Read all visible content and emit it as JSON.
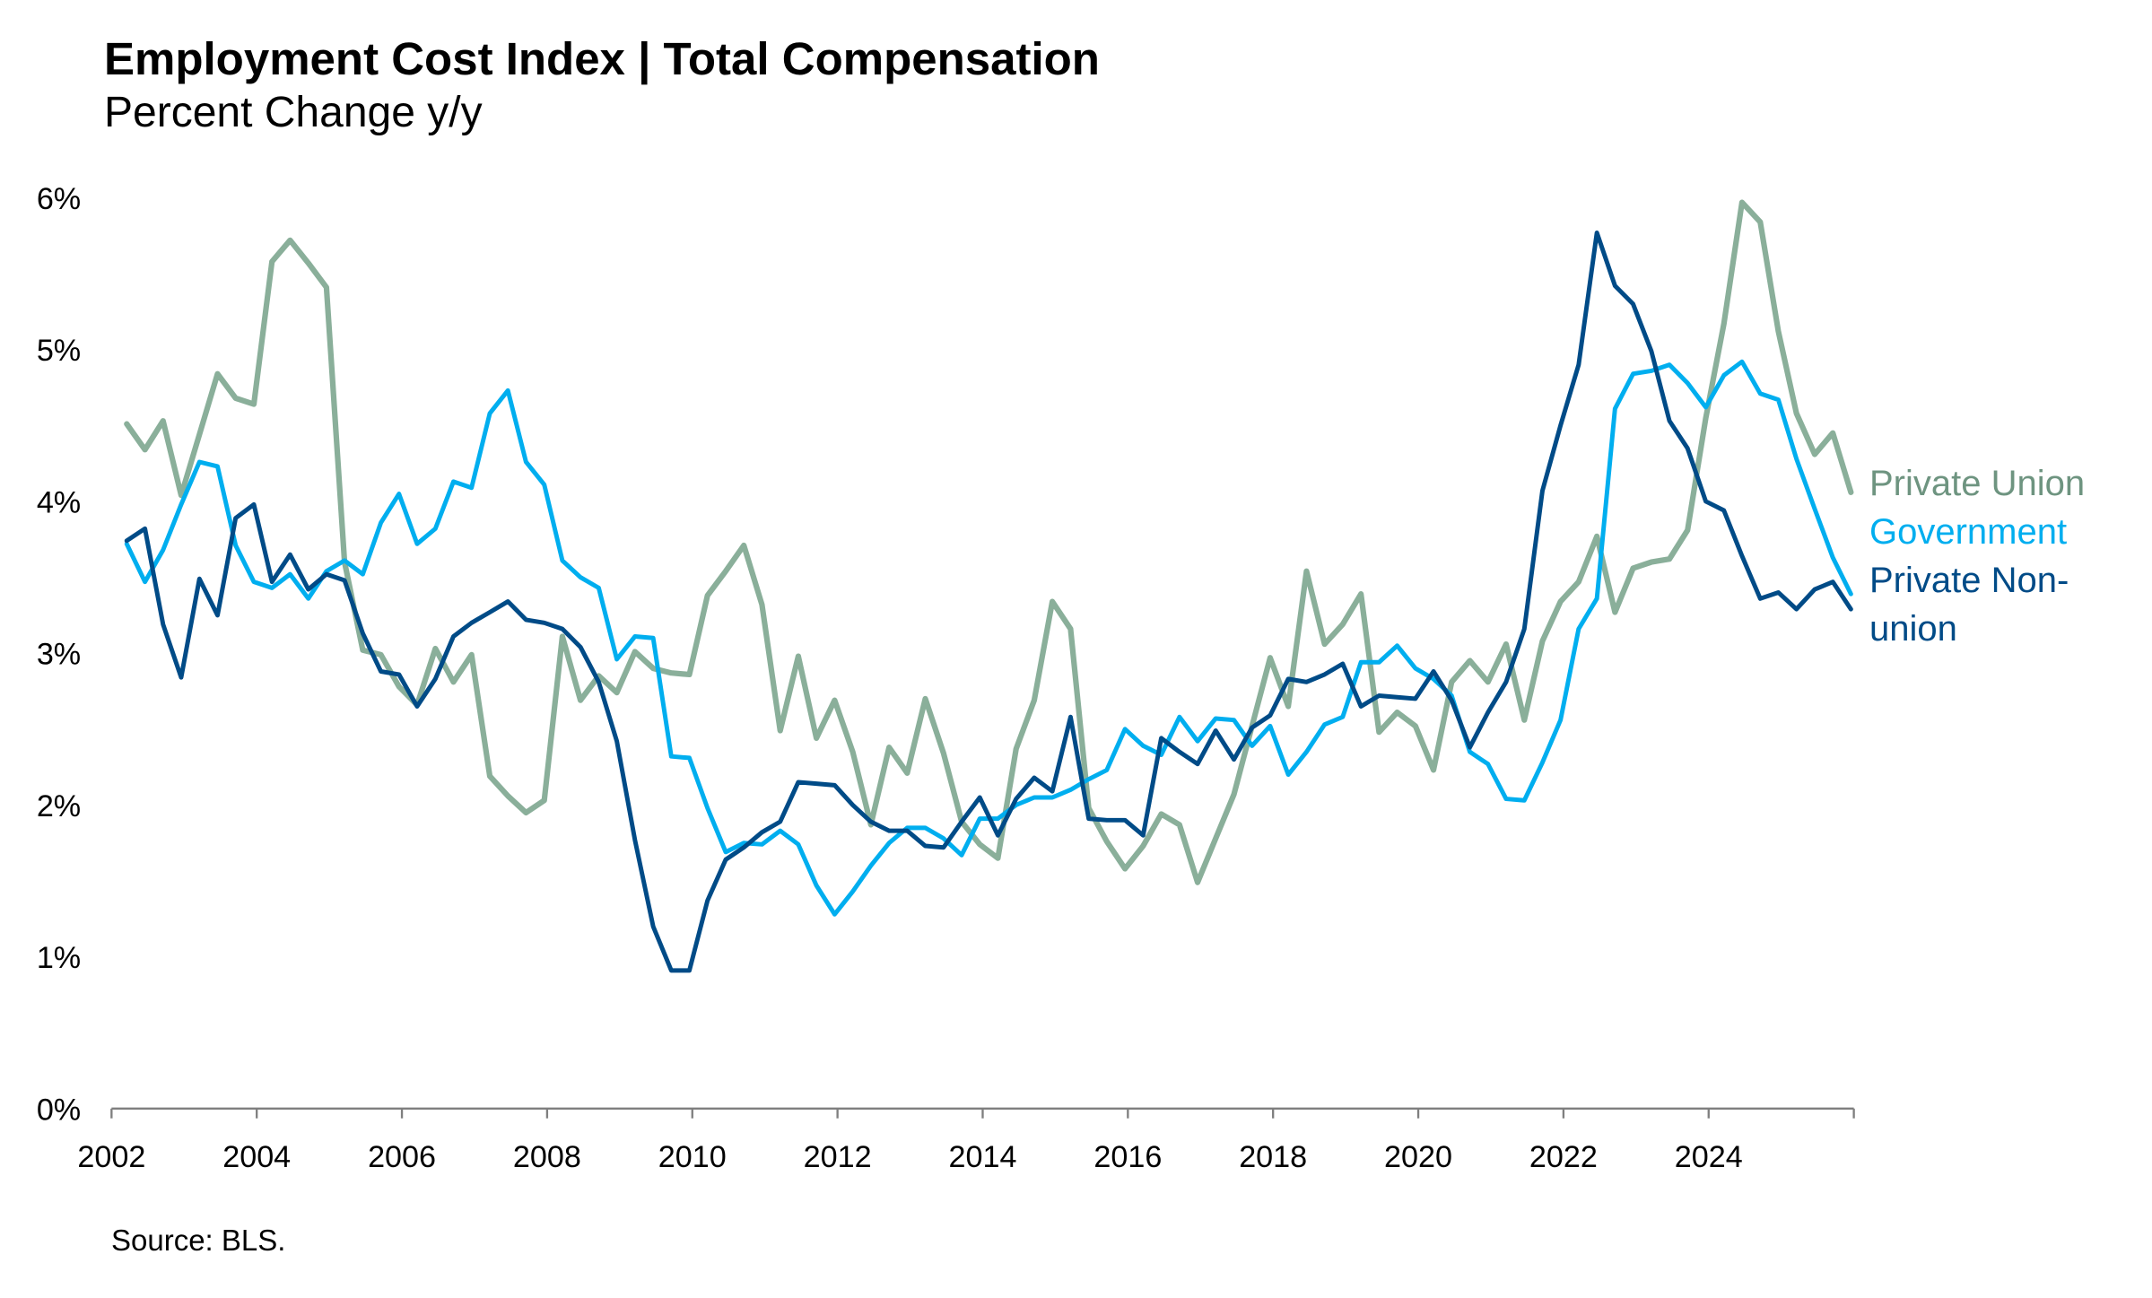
{
  "title": "Employment Cost Index | Total Compensation",
  "subtitle": "Percent Change y/y",
  "source": "Source: BLS.",
  "chart_data": {
    "type": "line",
    "title": "Employment Cost Index | Total Compensation",
    "subtitle": "Percent Change y/y",
    "xlabel": "",
    "ylabel": "",
    "x_start_quarter": "2002Q1",
    "x_frequency": "quarterly",
    "xlim": [
      2002,
      2026
    ],
    "ylim": [
      0,
      6
    ],
    "x_ticks": [
      "2002",
      "2004",
      "2006",
      "2008",
      "2010",
      "2012",
      "2014",
      "2016",
      "2018",
      "2020",
      "2022",
      "2024"
    ],
    "y_ticks": [
      "0%",
      "1%",
      "2%",
      "3%",
      "4%",
      "5%",
      "6%"
    ],
    "grid": false,
    "legend": "right",
    "series": [
      {
        "name": "Private Union",
        "color": "#8AAF9A",
        "label_color": "#6E9480",
        "values": [
          4.51,
          4.34,
          4.53,
          4.04,
          4.44,
          4.84,
          4.68,
          4.64,
          5.58,
          5.72,
          5.57,
          5.41,
          3.6,
          3.02,
          2.99,
          2.78,
          2.66,
          3.03,
          2.81,
          2.99,
          2.19,
          2.06,
          1.95,
          2.03,
          3.11,
          2.69,
          2.85,
          2.74,
          3.01,
          2.9,
          2.87,
          2.86,
          3.38,
          3.54,
          3.71,
          3.32,
          2.49,
          2.98,
          2.44,
          2.69,
          2.35,
          1.87,
          2.38,
          2.21,
          2.7,
          2.34,
          1.89,
          1.74,
          1.65,
          2.37,
          2.69,
          3.34,
          3.16,
          1.98,
          1.76,
          1.58,
          1.73,
          1.94,
          1.87,
          1.49,
          1.78,
          2.07,
          2.52,
          2.97,
          2.65,
          3.54,
          3.06,
          3.19,
          3.39,
          2.48,
          2.61,
          2.52,
          2.23,
          2.81,
          2.95,
          2.81,
          3.06,
          2.56,
          3.08,
          3.34,
          3.47,
          3.77,
          3.27,
          3.56,
          3.6,
          3.62,
          3.81,
          4.55,
          5.17,
          5.97,
          5.84,
          5.12,
          4.58,
          4.31,
          4.45,
          4.06
        ]
      },
      {
        "name": "Government",
        "color": "#00AEEF",
        "label_color": "#00AEEF",
        "values": [
          3.72,
          3.47,
          3.68,
          3.98,
          4.26,
          4.23,
          3.71,
          3.47,
          3.43,
          3.52,
          3.36,
          3.54,
          3.61,
          3.52,
          3.86,
          4.05,
          3.72,
          3.82,
          4.13,
          4.09,
          4.58,
          4.73,
          4.26,
          4.11,
          3.61,
          3.5,
          3.43,
          2.96,
          3.11,
          3.1,
          2.32,
          2.31,
          1.98,
          1.69,
          1.75,
          1.74,
          1.83,
          1.74,
          1.47,
          1.28,
          1.43,
          1.6,
          1.75,
          1.85,
          1.85,
          1.78,
          1.67,
          1.91,
          1.91,
          2.0,
          2.05,
          2.05,
          2.1,
          2.17,
          2.23,
          2.5,
          2.39,
          2.33,
          2.58,
          2.42,
          2.57,
          2.56,
          2.39,
          2.52,
          2.2,
          2.35,
          2.53,
          2.58,
          2.94,
          2.94,
          3.05,
          2.9,
          2.83,
          2.72,
          2.35,
          2.27,
          2.04,
          2.03,
          2.28,
          2.56,
          3.16,
          3.36,
          4.61,
          4.84,
          4.86,
          4.9,
          4.78,
          4.62,
          4.83,
          4.92,
          4.71,
          4.67,
          4.28,
          3.95,
          3.63,
          3.39
        ]
      },
      {
        "name": "Private Non-union",
        "color": "#004B87",
        "label_color": "#004B87",
        "values": [
          3.74,
          3.82,
          3.19,
          2.84,
          3.49,
          3.25,
          3.89,
          3.98,
          3.47,
          3.65,
          3.42,
          3.52,
          3.48,
          3.13,
          2.88,
          2.86,
          2.65,
          2.83,
          3.11,
          3.2,
          3.27,
          3.34,
          3.22,
          3.2,
          3.16,
          3.04,
          2.81,
          2.42,
          1.77,
          1.2,
          0.91,
          0.91,
          1.37,
          1.64,
          1.72,
          1.82,
          1.89,
          2.15,
          2.14,
          2.13,
          2.0,
          1.89,
          1.83,
          1.83,
          1.73,
          1.72,
          1.89,
          2.05,
          1.8,
          2.04,
          2.18,
          2.09,
          2.58,
          1.91,
          1.9,
          1.9,
          1.8,
          2.44,
          2.35,
          2.27,
          2.49,
          2.3,
          2.51,
          2.59,
          2.83,
          2.81,
          2.86,
          2.93,
          2.65,
          2.72,
          2.71,
          2.7,
          2.88,
          2.69,
          2.38,
          2.61,
          2.81,
          3.16,
          4.07,
          4.5,
          4.9,
          5.77,
          5.42,
          5.3,
          4.99,
          4.53,
          4.35,
          4.0,
          3.94,
          3.64,
          3.36,
          3.4,
          3.29,
          3.42,
          3.47,
          3.29
        ]
      }
    ]
  }
}
